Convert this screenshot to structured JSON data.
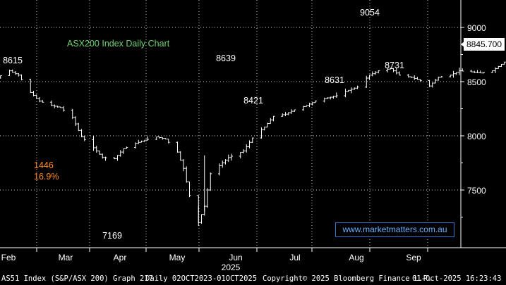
{
  "chart_data": {
    "type": "line",
    "title": "ASX200 Index Daily Chart",
    "title_color": "#6fd46f",
    "x_axis": {
      "months": [
        "Feb",
        "Mar",
        "Apr",
        "May",
        "Jun",
        "Jul",
        "Aug",
        "Sep"
      ],
      "year_label": "2025"
    },
    "y_axis": {
      "ticks": [
        7500,
        8000,
        8500,
        9000
      ],
      "range": [
        7000,
        9200
      ],
      "grid": true
    },
    "current_value_label": "8845.700",
    "annotations": [
      {
        "text": "8615",
        "color": "#ffffff"
      },
      {
        "text": "1446",
        "color": "#ff8c1a"
      },
      {
        "text": "16.9%",
        "color": "#ff8c1a"
      },
      {
        "text": "7169",
        "color": "#ffffff"
      },
      {
        "text": "8639",
        "color": "#ffffff"
      },
      {
        "text": "8421",
        "color": "#ffffff"
      },
      {
        "text": "8631",
        "color": "#ffffff"
      },
      {
        "text": "9054",
        "color": "#ffffff"
      },
      {
        "text": "8731",
        "color": "#ffffff"
      }
    ],
    "series": [
      {
        "name": "AS51 Index",
        "anchors": [
          [
            "2025-01-27",
            8520
          ],
          [
            "2025-01-30",
            8540
          ],
          [
            "2025-02-03",
            8600
          ],
          [
            "2025-02-06",
            8560
          ],
          [
            "2025-02-10",
            8400
          ],
          [
            "2025-02-13",
            8320
          ],
          [
            "2025-02-17",
            8280
          ],
          [
            "2025-02-20",
            8260
          ],
          [
            "2025-02-24",
            8170
          ],
          [
            "2025-02-27",
            7990
          ],
          [
            "2025-03-03",
            7890
          ],
          [
            "2025-03-06",
            7800
          ],
          [
            "2025-03-10",
            7790
          ],
          [
            "2025-03-13",
            7880
          ],
          [
            "2025-03-17",
            7930
          ],
          [
            "2025-03-20",
            7960
          ],
          [
            "2025-03-24",
            7990
          ],
          [
            "2025-03-27",
            7970
          ],
          [
            "2025-03-31",
            7850
          ],
          [
            "2025-04-02",
            7700
          ],
          [
            "2025-04-04",
            7450
          ],
          [
            "2025-04-07",
            7200
          ],
          [
            "2025-04-09",
            7350
          ],
          [
            "2025-04-11",
            7650
          ],
          [
            "2025-04-15",
            7750
          ],
          [
            "2025-04-17",
            7800
          ],
          [
            "2025-04-22",
            7860
          ],
          [
            "2025-04-25",
            7980
          ],
          [
            "2025-04-29",
            8080
          ],
          [
            "2025-05-02",
            8180
          ],
          [
            "2025-05-06",
            8200
          ],
          [
            "2025-05-09",
            8240
          ],
          [
            "2025-05-13",
            8280
          ],
          [
            "2025-05-16",
            8320
          ],
          [
            "2025-05-20",
            8350
          ],
          [
            "2025-05-23",
            8370
          ],
          [
            "2025-05-27",
            8420
          ],
          [
            "2025-05-30",
            8450
          ],
          [
            "2025-06-03",
            8560
          ],
          [
            "2025-06-06",
            8600
          ],
          [
            "2025-06-10",
            8620
          ],
          [
            "2025-06-13",
            8560
          ],
          [
            "2025-06-17",
            8540
          ],
          [
            "2025-06-20",
            8510
          ],
          [
            "2025-06-23",
            8460
          ],
          [
            "2025-06-26",
            8540
          ],
          [
            "2025-06-30",
            8560
          ],
          [
            "2025-07-03",
            8600
          ],
          [
            "2025-07-07",
            8590
          ],
          [
            "2025-07-10",
            8580
          ],
          [
            "2025-07-14",
            8600
          ],
          [
            "2025-07-17",
            8660
          ],
          [
            "2025-07-21",
            8740
          ],
          [
            "2025-07-24",
            8720
          ],
          [
            "2025-07-28",
            8700
          ],
          [
            "2025-07-31",
            8720
          ],
          [
            "2025-08-04",
            8680
          ],
          [
            "2025-08-07",
            8820
          ],
          [
            "2025-08-11",
            8840
          ],
          [
            "2025-08-14",
            8860
          ],
          [
            "2025-08-18",
            8900
          ],
          [
            "2025-08-21",
            8960
          ],
          [
            "2025-08-25",
            9020
          ],
          [
            "2025-08-28",
            8980
          ],
          [
            "2025-09-01",
            8950
          ],
          [
            "2025-09-03",
            8760
          ],
          [
            "2025-09-05",
            8850
          ],
          [
            "2025-09-09",
            8820
          ],
          [
            "2025-09-12",
            8870
          ],
          [
            "2025-09-16",
            8840
          ],
          [
            "2025-09-19",
            8810
          ],
          [
            "2025-09-23",
            8820
          ],
          [
            "2025-09-26",
            8790
          ],
          [
            "2025-09-30",
            8850
          ],
          [
            "2025-10-01",
            8846
          ]
        ]
      }
    ]
  },
  "watermark": "www.marketmatters.com.au",
  "footer": {
    "security": "AS51 Index (S&P/ASX 200) Graph 217",
    "period": "Daily 02OCT2023-01OCT2025",
    "copyright": "Copyright© 2025 Bloomberg Finance L.P.",
    "timestamp": "01-Oct-2025 16:23:43"
  }
}
